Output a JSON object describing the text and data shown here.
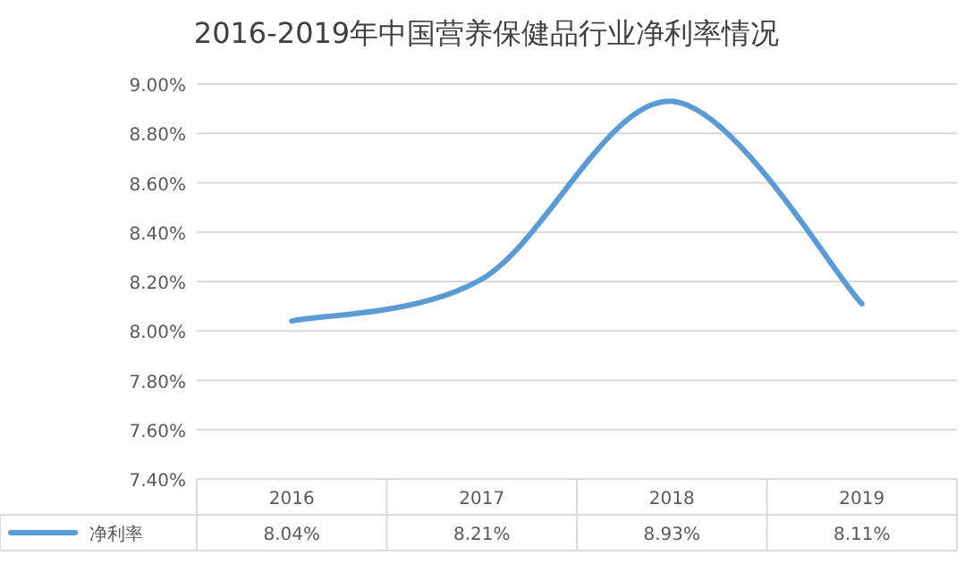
{
  "chart_data": {
    "type": "line",
    "title": "2016-2019年中国营养保健品行业净利率情况",
    "categories": [
      "2016",
      "2017",
      "2018",
      "2019"
    ],
    "series": [
      {
        "name": "净利率",
        "color": "#5b9bd5",
        "values": [
          8.04,
          8.21,
          8.93,
          8.11
        ],
        "value_labels": [
          "8.04%",
          "8.21%",
          "8.93%",
          "8.11%"
        ]
      }
    ],
    "ylim": [
      7.4,
      9.0
    ],
    "yticks": [
      {
        "value": 7.4,
        "label": "7.40%"
      },
      {
        "value": 7.6,
        "label": "7.60%"
      },
      {
        "value": 7.8,
        "label": "7.80%"
      },
      {
        "value": 8.0,
        "label": "8.00%"
      },
      {
        "value": 8.2,
        "label": "8.20%"
      },
      {
        "value": 8.4,
        "label": "8.40%"
      },
      {
        "value": 8.6,
        "label": "8.60%"
      },
      {
        "value": 8.8,
        "label": "8.80%"
      },
      {
        "value": 9.0,
        "label": "9.00%"
      }
    ],
    "grid": "y",
    "legend": "bottom"
  }
}
